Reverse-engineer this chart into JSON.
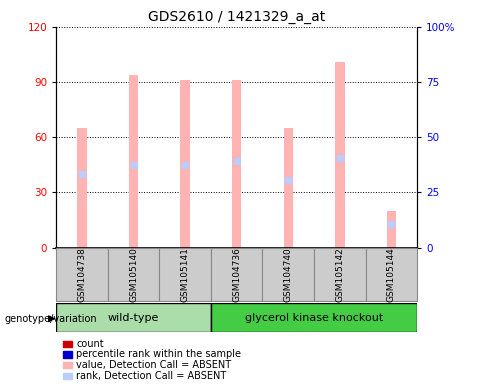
{
  "title": "GDS2610 / 1421329_a_at",
  "samples": [
    "GSM104738",
    "GSM105140",
    "GSM105141",
    "GSM104736",
    "GSM104740",
    "GSM105142",
    "GSM105144"
  ],
  "wt_count": 3,
  "bar_values": [
    65,
    94,
    91,
    91,
    65,
    101,
    20
  ],
  "rank_values": [
    40,
    45,
    45,
    47,
    37,
    49,
    13
  ],
  "bar_color_absent": "#FFB3B3",
  "rank_color_absent": "#BBCCFF",
  "bar_width": 0.18,
  "ylim_left": [
    0,
    120
  ],
  "ylim_right": [
    0,
    100
  ],
  "yticks_left": [
    0,
    30,
    60,
    90,
    120
  ],
  "yticks_right": [
    0,
    25,
    50,
    75,
    100
  ],
  "ytick_labels_right": [
    "0",
    "25",
    "50",
    "75",
    "100%"
  ],
  "group_colors": {
    "wild-type": "#AADDAA",
    "glycerol kinase knockout": "#44CC44"
  },
  "genotype_label": "genotype/variation",
  "legend_items": [
    {
      "label": "count",
      "color": "#CC0000"
    },
    {
      "label": "percentile rank within the sample",
      "color": "#0000CC"
    },
    {
      "label": "value, Detection Call = ABSENT",
      "color": "#FFB3B3"
    },
    {
      "label": "rank, Detection Call = ABSENT",
      "color": "#BBCCFF"
    }
  ],
  "title_fontsize": 10,
  "tick_fontsize": 7.5,
  "legend_fontsize": 7,
  "group_fontsize": 8
}
